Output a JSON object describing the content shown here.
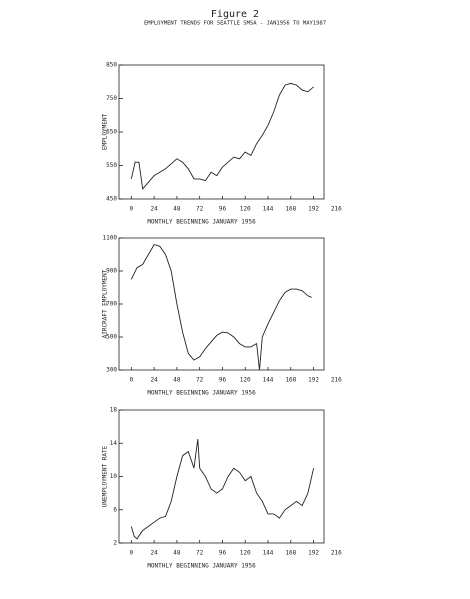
{
  "title": "Figure 2",
  "subtitle": "EMPLOYMENT TRENDS FOR SEATTLE SMSA - JAN1956 TO MAY1987",
  "chart_data": [
    {
      "type": "line",
      "y_label": "EMPLOYMENT",
      "x_label": "MONTHLY BEGINNING JANUARY 1956",
      "xlim": [
        -13,
        203
      ],
      "xticks": [
        0,
        24,
        48,
        72,
        96,
        120,
        144,
        168,
        192,
        216
      ],
      "ylim": [
        450,
        850
      ],
      "yticks": [
        450,
        550,
        650,
        750,
        850
      ],
      "series": [
        {
          "color": "#222",
          "x": [
            0,
            4,
            8,
            12,
            18,
            24,
            30,
            36,
            42,
            48,
            54,
            60,
            66,
            72,
            78,
            84,
            90,
            96,
            102,
            108,
            114,
            120,
            126,
            132,
            138,
            144,
            150,
            156,
            162,
            168,
            174,
            180,
            186,
            192
          ],
          "values": [
            510,
            560,
            560,
            480,
            500,
            520,
            530,
            540,
            555,
            570,
            560,
            540,
            510,
            510,
            505,
            530,
            520,
            545,
            560,
            575,
            570,
            590,
            580,
            615,
            640,
            670,
            710,
            760,
            790,
            795,
            790,
            775,
            770,
            785
          ]
        }
      ]
    },
    {
      "type": "line",
      "y_label": "AIRCRAFT EMPLOYMENT",
      "x_label": "MONTHLY BEGINNING JANUARY 1956",
      "xlim": [
        -13,
        203
      ],
      "xticks": [
        0,
        24,
        48,
        72,
        96,
        120,
        144,
        168,
        192,
        216
      ],
      "ylim": [
        300,
        1100
      ],
      "yticks": [
        300,
        500,
        700,
        900,
        1100
      ],
      "series": [
        {
          "color": "#222",
          "x": [
            0,
            6,
            12,
            18,
            24,
            30,
            36,
            42,
            48,
            54,
            60,
            66,
            72,
            78,
            84,
            90,
            96,
            102,
            108,
            114,
            120,
            126,
            132,
            135,
            138,
            144,
            150,
            156,
            162,
            168,
            174,
            180,
            186,
            190
          ],
          "values": [
            850,
            920,
            940,
            1000,
            1060,
            1050,
            1000,
            900,
            700,
            530,
            400,
            360,
            380,
            430,
            470,
            510,
            530,
            525,
            500,
            460,
            440,
            440,
            460,
            300,
            500,
            580,
            650,
            720,
            770,
            790,
            790,
            780,
            750,
            740
          ]
        }
      ]
    },
    {
      "type": "line",
      "y_label": "UNEMPLOYMENT RATE",
      "x_label": "MONTHLY BEGINNING JANUARY 1956",
      "xlim": [
        -13,
        203
      ],
      "xticks": [
        0,
        24,
        48,
        72,
        96,
        120,
        144,
        168,
        192,
        216
      ],
      "ylim": [
        2,
        18
      ],
      "yticks": [
        2,
        6,
        10,
        14,
        18
      ],
      "series": [
        {
          "color": "#222",
          "x": [
            0,
            3,
            6,
            12,
            18,
            24,
            30,
            36,
            42,
            48,
            54,
            60,
            66,
            70,
            72,
            78,
            84,
            90,
            96,
            102,
            108,
            114,
            120,
            126,
            132,
            138,
            144,
            150,
            156,
            162,
            168,
            174,
            180,
            186,
            192
          ],
          "values": [
            4,
            2.8,
            2.5,
            3.5,
            4,
            4.5,
            5,
            5.2,
            7,
            10,
            12.5,
            13,
            11,
            14.5,
            11,
            10,
            8.5,
            8,
            8.5,
            10,
            11,
            10.5,
            9.5,
            10,
            8,
            7,
            5.5,
            5.5,
            5,
            6,
            6.5,
            7,
            6.5,
            8,
            11
          ]
        }
      ]
    }
  ]
}
